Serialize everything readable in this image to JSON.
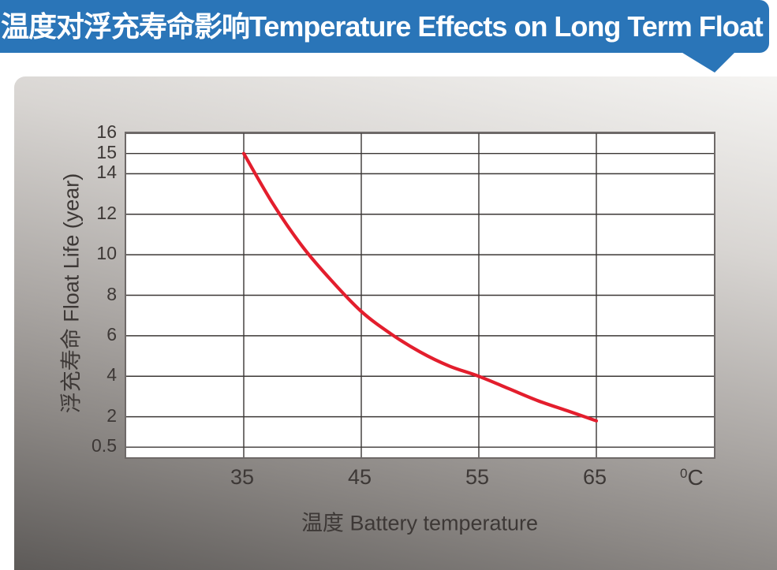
{
  "banner": {
    "title": "温度对浮充寿命影响Temperature Effects on Long Term Float Life",
    "bg_color": "#2a75b8",
    "text_color": "#ffffff"
  },
  "chart_data": {
    "type": "line",
    "title": "温度对浮充寿命影响 Temperature Effects on Long Term Float Life",
    "xlabel": "温度  Battery temperature",
    "ylabel": "浮充寿命  Float Life (year)",
    "x_unit_sup": "0",
    "x_unit_base": "C",
    "xlim": [
      25,
      75
    ],
    "ylim": [
      0,
      16
    ],
    "x_ticks": [
      35,
      45,
      55,
      65
    ],
    "y_ticks": [
      16,
      15,
      14,
      12,
      10,
      8,
      6,
      4,
      2,
      0.5
    ],
    "grid": true,
    "legend": "none",
    "grid_color": "#3b3735",
    "border_color": "#6e6968",
    "plot_bg": "#ffffff",
    "series": [
      {
        "name": "float-life-vs-temperature",
        "color": "#e31e2d",
        "x": [
          35,
          37.5,
          40,
          42.5,
          45,
          47.5,
          50,
          52.5,
          55,
          57.5,
          60,
          62.5,
          65
        ],
        "y": [
          15,
          12.5,
          10.4,
          8.7,
          7.2,
          6.1,
          5.2,
          4.5,
          4.0,
          3.4,
          2.8,
          2.3,
          1.8
        ]
      }
    ]
  }
}
